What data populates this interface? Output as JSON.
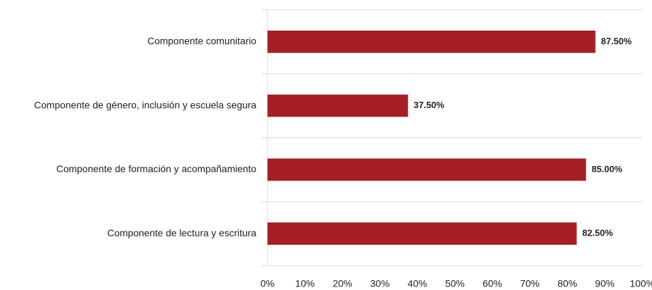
{
  "chart_data": {
    "type": "barh",
    "categories": [
      "Componente comunitario",
      "Componente de género, inclusión y escuela segura",
      "Componente de formación y acompañamiento",
      "Componente de lectura y escritura"
    ],
    "values": [
      87.5,
      37.5,
      85,
      82.5
    ],
    "value_labels": [
      "87.50%",
      "37.50%",
      "85.00%",
      "82.50%"
    ],
    "color": "#a51f24",
    "xlim": [
      0,
      100
    ],
    "xticks": [
      {
        "value": 0,
        "label": "0%"
      },
      {
        "value": 10,
        "label": "10%"
      },
      {
        "value": 20,
        "label": "20%"
      },
      {
        "value": 30,
        "label": "30%"
      },
      {
        "value": 40,
        "label": "40%"
      },
      {
        "value": 50,
        "label": "50%"
      },
      {
        "value": 60,
        "label": "60%"
      },
      {
        "value": 70,
        "label": "70%"
      },
      {
        "value": 80,
        "label": "80%"
      },
      {
        "value": 90,
        "label": "90%"
      },
      {
        "value": 100,
        "label": "100%"
      }
    ],
    "grid": false
  }
}
